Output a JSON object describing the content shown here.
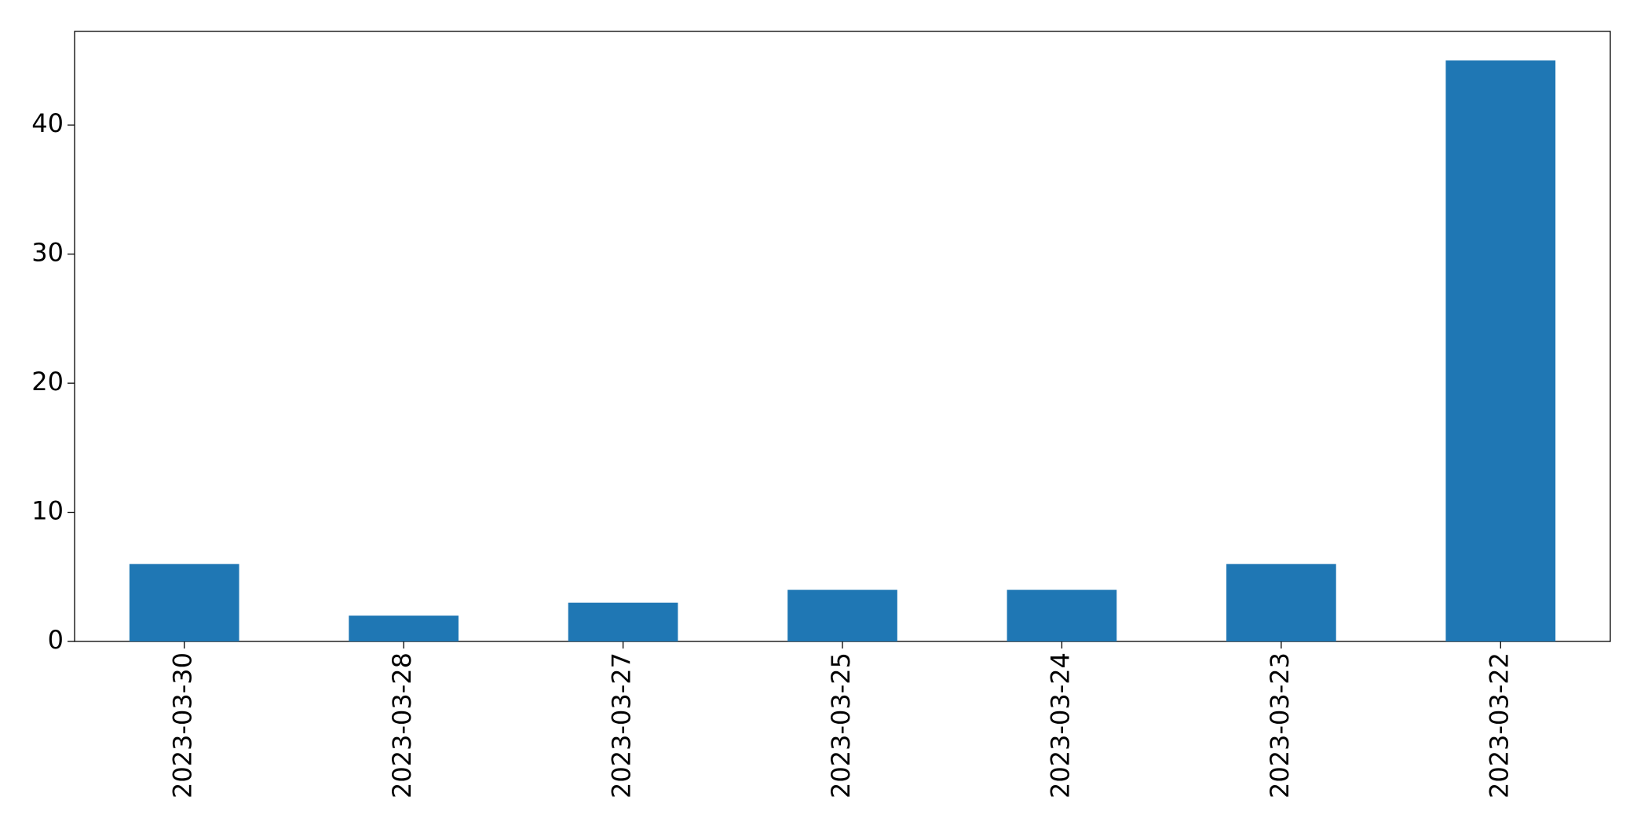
{
  "chart_data": {
    "type": "bar",
    "categories": [
      "2023-03-30",
      "2023-03-28",
      "2023-03-27",
      "2023-03-25",
      "2023-03-24",
      "2023-03-23",
      "2023-03-22"
    ],
    "values": [
      6,
      2,
      3,
      4,
      4,
      6,
      45
    ],
    "color": "#1f77b4",
    "ylim": [
      0,
      47.25
    ],
    "yticks": [
      0,
      10,
      20,
      30,
      40
    ],
    "grid": false
  }
}
